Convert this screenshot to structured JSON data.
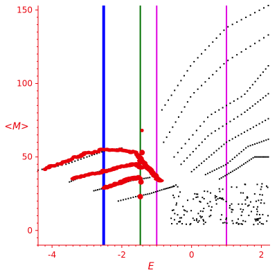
{
  "chart_data": {
    "type": "scatter",
    "title": "",
    "xlabel": "E",
    "ylabel": "<M>",
    "xlim": [
      -4.4,
      2.25
    ],
    "ylim": [
      -10,
      153
    ],
    "grid": false,
    "axis_color": "#e8000b",
    "x_ticks": [
      -4,
      -2,
      0,
      2
    ],
    "x_tick_labels": [
      "-4",
      "-2",
      "0",
      "2"
    ],
    "y_ticks": [
      0,
      50,
      100,
      150
    ],
    "y_tick_labels": [
      "0",
      "50",
      "100",
      "150"
    ],
    "vertical_lines": [
      {
        "x": -2.52,
        "color": "#0000ff",
        "style": "thick"
      },
      {
        "x": -1.47,
        "color": "#007000",
        "style": "medium"
      },
      {
        "x": -1.0,
        "color": "#e000e0",
        "style": "medium"
      },
      {
        "x": 1.0,
        "color": "#e000e0",
        "style": "medium"
      }
    ],
    "series": [
      {
        "color": "#000000",
        "marker": "small-dot",
        "curves": [
          {
            "points": [
              [
                -4.4,
                41
              ],
              [
                -3.6,
                45
              ],
              [
                -3.0,
                50
              ],
              [
                -2.5,
                54
              ],
              [
                -2.0,
                56
              ]
            ]
          },
          {
            "points": [
              [
                -3.5,
                33
              ],
              [
                -3.0,
                38
              ],
              [
                -2.5,
                41
              ],
              [
                -2.0,
                44
              ]
            ]
          },
          {
            "points": [
              [
                -2.8,
                27
              ],
              [
                -2.3,
                30
              ],
              [
                -1.7,
                34
              ],
              [
                -1.2,
                36
              ]
            ]
          },
          {
            "points": [
              [
                -2.1,
                20
              ],
              [
                -1.6,
                23
              ],
              [
                -1.2,
                25
              ],
              [
                -0.8,
                28
              ],
              [
                -0.5,
                30
              ]
            ]
          },
          {
            "points": [
              [
                -0.85,
                82
              ],
              [
                0.0,
                113
              ],
              [
                1.0,
                138
              ],
              [
                2.2,
                153
              ]
            ]
          },
          {
            "points": [
              [
                -0.8,
                60
              ],
              [
                0.0,
                92
              ],
              [
                1.0,
                115
              ],
              [
                2.2,
                133
              ]
            ]
          },
          {
            "points": [
              [
                -0.5,
                50
              ],
              [
                0.5,
                78
              ],
              [
                1.5,
                92
              ],
              [
                2.2,
                112
              ]
            ]
          },
          {
            "points": [
              [
                -0.3,
                45
              ],
              [
                0.5,
                65
              ],
              [
                1.5,
                80
              ],
              [
                2.2,
                93
              ]
            ]
          },
          {
            "points": [
              [
                0.0,
                40
              ],
              [
                1.0,
                60
              ],
              [
                2.2,
                76
              ]
            ]
          },
          {
            "points": [
              [
                0.4,
                38
              ],
              [
                1.0,
                45
              ],
              [
                1.6,
                57
              ],
              [
                2.2,
                62
              ]
            ]
          },
          {
            "points": [
              [
                0.8,
                35
              ],
              [
                1.3,
                42
              ],
              [
                1.8,
                50
              ],
              [
                2.2,
                50
              ]
            ]
          }
        ],
        "cloud": {
          "x_range": [
            -0.6,
            2.2
          ],
          "y_range": [
            4,
            32
          ]
        }
      },
      {
        "color": "#e8000b",
        "marker": "dot",
        "curves": [
          {
            "points": [
              [
                -4.2,
                42
              ],
              [
                -3.6,
                47
              ],
              [
                -3.1,
                52
              ],
              [
                -2.5,
                55
              ],
              [
                -2.0,
                55
              ],
              [
                -1.6,
                53
              ],
              [
                -1.45,
                48
              ]
            ]
          },
          {
            "points": [
              [
                -3.4,
                35
              ],
              [
                -2.9,
                38
              ],
              [
                -2.4,
                41
              ],
              [
                -2.0,
                44
              ],
              [
                -1.6,
                45
              ],
              [
                -1.45,
                43
              ]
            ]
          },
          {
            "points": [
              [
                -2.5,
                29
              ],
              [
                -2.0,
                33
              ],
              [
                -1.8,
                35
              ],
              [
                -1.5,
                36
              ]
            ]
          },
          {
            "points": [
              [
                -1.45,
                47
              ],
              [
                -1.3,
                44
              ],
              [
                -1.15,
                40
              ],
              [
                -1.0,
                36
              ],
              [
                -0.9,
                34
              ]
            ]
          }
        ],
        "big_points": [
          [
            -1.42,
            53
          ],
          [
            -1.47,
            47
          ],
          [
            -1.45,
            33
          ],
          [
            -1.47,
            23
          ],
          [
            -1.42,
            68
          ]
        ]
      }
    ]
  }
}
